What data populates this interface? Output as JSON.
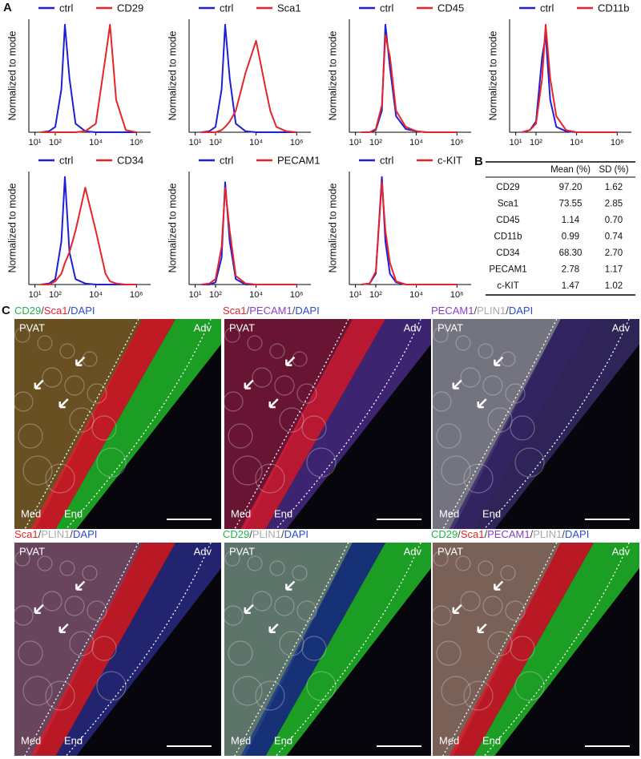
{
  "panel_labels": [
    "A",
    "B",
    "C"
  ],
  "chart_data": [
    {
      "type": "line",
      "ylabel": "Normalized to mode",
      "log_x": true,
      "xlim": [
        5,
        5000000
      ],
      "ylim": [
        0,
        105
      ],
      "xticks": [
        {
          "value": 10,
          "label": "10¹"
        },
        {
          "value": 100,
          "label": "10²"
        },
        {
          "value": 10000,
          "label": "10⁴"
        },
        {
          "value": 1000000,
          "label": "10⁶"
        }
      ],
      "x": [
        20,
        50,
        100,
        200,
        300,
        500,
        1000,
        3000,
        10000,
        30000,
        50000,
        100000,
        300000,
        1000000
      ],
      "series": [
        {
          "name": "ctrl",
          "color": "#1f1fd6",
          "values": [
            0,
            1,
            5,
            40,
            100,
            50,
            8,
            1,
            0,
            0,
            0,
            0,
            0,
            0
          ]
        },
        {
          "name": "CD29",
          "color": "#e8232a",
          "values": [
            0,
            0,
            0,
            0,
            0,
            0,
            0,
            1,
            8,
            70,
            100,
            30,
            2,
            0
          ]
        }
      ]
    },
    {
      "type": "line",
      "ylabel": "Normalized to mode",
      "log_x": true,
      "xlim": [
        5,
        5000000
      ],
      "ylim": [
        0,
        105
      ],
      "xticks": [
        {
          "value": 10,
          "label": "10¹"
        },
        {
          "value": 100,
          "label": "10²"
        },
        {
          "value": 10000,
          "label": "10⁴"
        },
        {
          "value": 1000000,
          "label": "10⁶"
        }
      ],
      "x": [
        20,
        50,
        100,
        200,
        300,
        500,
        1000,
        3000,
        10000,
        30000,
        50000,
        100000,
        300000,
        1000000
      ],
      "series": [
        {
          "name": "ctrl",
          "color": "#1f1fd6",
          "values": [
            0,
            1,
            5,
            40,
            100,
            50,
            8,
            1,
            0,
            0,
            0,
            0,
            0,
            0
          ]
        },
        {
          "name": "Sca1",
          "color": "#e8232a",
          "values": [
            0,
            0,
            0,
            2,
            5,
            10,
            20,
            55,
            85,
            40,
            20,
            5,
            1,
            0
          ]
        }
      ]
    },
    {
      "type": "line",
      "ylabel": "Normalized to mode",
      "log_x": true,
      "xlim": [
        5,
        5000000
      ],
      "ylim": [
        0,
        105
      ],
      "xticks": [
        {
          "value": 10,
          "label": "10¹"
        },
        {
          "value": 100,
          "label": "10²"
        },
        {
          "value": 10000,
          "label": "10⁴"
        },
        {
          "value": 1000000,
          "label": "10⁶"
        }
      ],
      "x": [
        20,
        50,
        100,
        200,
        300,
        500,
        1000,
        3000,
        10000,
        30000,
        50000,
        100000,
        300000,
        1000000
      ],
      "series": [
        {
          "name": "ctrl",
          "color": "#1f1fd6",
          "values": [
            0,
            0,
            2,
            20,
            100,
            60,
            15,
            3,
            1,
            0,
            0,
            0,
            0,
            0
          ]
        },
        {
          "name": "CD45",
          "color": "#e8232a",
          "values": [
            0,
            0,
            3,
            25,
            90,
            70,
            20,
            5,
            1,
            0,
            0,
            0,
            0,
            0
          ]
        }
      ]
    },
    {
      "type": "line",
      "ylabel": "Normalized to mode",
      "log_x": true,
      "xlim": [
        5,
        5000000
      ],
      "ylim": [
        0,
        105
      ],
      "xticks": [
        {
          "value": 10,
          "label": "10¹"
        },
        {
          "value": 100,
          "label": "10²"
        },
        {
          "value": 10000,
          "label": "10⁴"
        },
        {
          "value": 1000000,
          "label": "10⁶"
        }
      ],
      "x": [
        20,
        50,
        100,
        200,
        300,
        500,
        1000,
        3000,
        10000,
        30000,
        50000,
        100000,
        300000,
        1000000
      ],
      "series": [
        {
          "name": "ctrl",
          "color": "#1f1fd6",
          "values": [
            0,
            2,
            10,
            70,
            90,
            30,
            5,
            1,
            0,
            0,
            0,
            0,
            0,
            0
          ]
        },
        {
          "name": "CD11b",
          "color": "#e8232a",
          "values": [
            0,
            2,
            8,
            50,
            100,
            50,
            15,
            2,
            0,
            0,
            0,
            0,
            0,
            0
          ]
        }
      ]
    },
    {
      "type": "line",
      "ylabel": "Normalized to mode",
      "log_x": true,
      "xlim": [
        5,
        5000000
      ],
      "ylim": [
        0,
        105
      ],
      "xticks": [
        {
          "value": 10,
          "label": "10¹"
        },
        {
          "value": 100,
          "label": "10²"
        },
        {
          "value": 10000,
          "label": "10⁴"
        },
        {
          "value": 1000000,
          "label": "10⁶"
        }
      ],
      "x": [
        20,
        50,
        100,
        200,
        300,
        500,
        1000,
        3000,
        10000,
        30000,
        50000,
        100000,
        300000,
        1000000
      ],
      "series": [
        {
          "name": "ctrl",
          "color": "#1f1fd6",
          "values": [
            0,
            1,
            5,
            40,
            100,
            30,
            5,
            1,
            0,
            0,
            0,
            0,
            0,
            0
          ]
        },
        {
          "name": "CD34",
          "color": "#e8232a",
          "values": [
            0,
            0,
            3,
            10,
            20,
            30,
            50,
            90,
            50,
            10,
            3,
            1,
            0,
            0
          ]
        }
      ]
    },
    {
      "type": "line",
      "ylabel": "Normalized to mode",
      "log_x": true,
      "xlim": [
        5,
        5000000
      ],
      "ylim": [
        0,
        105
      ],
      "xticks": [
        {
          "value": 10,
          "label": "10¹"
        },
        {
          "value": 100,
          "label": "10²"
        },
        {
          "value": 10000,
          "label": "10⁴"
        },
        {
          "value": 1000000,
          "label": "10⁶"
        }
      ],
      "x": [
        20,
        50,
        100,
        200,
        300,
        500,
        1000,
        3000,
        10000,
        30000,
        50000,
        100000,
        300000,
        1000000
      ],
      "series": [
        {
          "name": "ctrl",
          "color": "#1f1fd6",
          "values": [
            0,
            0,
            2,
            25,
            95,
            40,
            5,
            0,
            0,
            0,
            0,
            0,
            0,
            0
          ]
        },
        {
          "name": "PECAM1",
          "color": "#e8232a",
          "values": [
            0,
            1,
            5,
            35,
            90,
            50,
            8,
            1,
            0,
            0,
            0,
            0,
            0,
            0
          ]
        }
      ]
    },
    {
      "type": "line",
      "ylabel": "Normalized to mode",
      "log_x": true,
      "xlim": [
        5,
        5000000
      ],
      "ylim": [
        0,
        105
      ],
      "xticks": [
        {
          "value": 10,
          "label": "10¹"
        },
        {
          "value": 100,
          "label": "10²"
        },
        {
          "value": 10000,
          "label": "10⁴"
        },
        {
          "value": 1000000,
          "label": "10⁶"
        }
      ],
      "x": [
        20,
        50,
        100,
        200,
        300,
        500,
        1000,
        3000,
        10000,
        30000,
        50000,
        100000,
        300000,
        1000000
      ],
      "series": [
        {
          "name": "ctrl",
          "color": "#1f1fd6",
          "values": [
            0,
            1,
            10,
            100,
            40,
            10,
            2,
            0,
            0,
            0,
            0,
            0,
            0,
            0
          ]
        },
        {
          "name": "c-KIT",
          "color": "#e8232a",
          "values": [
            0,
            1,
            12,
            95,
            50,
            20,
            3,
            0,
            0,
            0,
            0,
            0,
            0,
            0
          ]
        }
      ]
    }
  ],
  "table": {
    "header": [
      "Mean (%)",
      "SD (%)"
    ],
    "rows": [
      [
        "CD29",
        "97.20",
        "1.62"
      ],
      [
        "Sca1",
        "73.55",
        "2.85"
      ],
      [
        "CD45",
        "1.14",
        "0.70"
      ],
      [
        "CD11b",
        "0.99",
        "0.74"
      ],
      [
        "CD34",
        "68.30",
        "2.70"
      ],
      [
        "PECAM1",
        "2.78",
        "1.17"
      ],
      [
        "c-KIT",
        "1.47",
        "1.02"
      ]
    ]
  },
  "image_labels": [
    "PVAT",
    "Adv",
    "Med",
    "End"
  ],
  "images": [
    {
      "title": [
        {
          "text": "CD29",
          "color": "#22b24c"
        },
        {
          "text": "/",
          "color": "#444"
        },
        {
          "text": "Sca1",
          "color": "#e8232a"
        },
        {
          "text": "/",
          "color": "#444"
        },
        {
          "text": "DAPI",
          "color": "#2a4bd6"
        }
      ]
    },
    {
      "title": [
        {
          "text": "Sca1",
          "color": "#e8232a"
        },
        {
          "text": "/",
          "color": "#444"
        },
        {
          "text": "PECAM1",
          "color": "#8a3fc4"
        },
        {
          "text": "/",
          "color": "#444"
        },
        {
          "text": "DAPI",
          "color": "#2a4bd6"
        }
      ]
    },
    {
      "title": [
        {
          "text": "PECAM1",
          "color": "#8a3fc4"
        },
        {
          "text": "/",
          "color": "#444"
        },
        {
          "text": "PLIN1",
          "color": "#aaaaaa"
        },
        {
          "text": "/",
          "color": "#444"
        },
        {
          "text": "DAPI",
          "color": "#2a4bd6"
        }
      ]
    },
    {
      "title": [
        {
          "text": "Sca1",
          "color": "#e8232a"
        },
        {
          "text": "/",
          "color": "#444"
        },
        {
          "text": "PLIN1",
          "color": "#aaaaaa"
        },
        {
          "text": "/",
          "color": "#444"
        },
        {
          "text": "DAPI",
          "color": "#2a4bd6"
        }
      ]
    },
    {
      "title": [
        {
          "text": "CD29",
          "color": "#22b24c"
        },
        {
          "text": "/",
          "color": "#444"
        },
        {
          "text": "PLIN1",
          "color": "#aaaaaa"
        },
        {
          "text": "/",
          "color": "#444"
        },
        {
          "text": "DAPI",
          "color": "#2a4bd6"
        }
      ]
    },
    {
      "title": [
        {
          "text": "CD29",
          "color": "#22b24c"
        },
        {
          "text": "/",
          "color": "#444"
        },
        {
          "text": "Sca1",
          "color": "#e8232a"
        },
        {
          "text": "/",
          "color": "#444"
        },
        {
          "text": "PECAM1",
          "color": "#8a3fc4"
        },
        {
          "text": "/",
          "color": "#444"
        },
        {
          "text": "PLIN1",
          "color": "#aaaaaa"
        },
        {
          "text": "/",
          "color": "#444"
        },
        {
          "text": "DAPI",
          "color": "#2a4bd6"
        }
      ]
    }
  ]
}
